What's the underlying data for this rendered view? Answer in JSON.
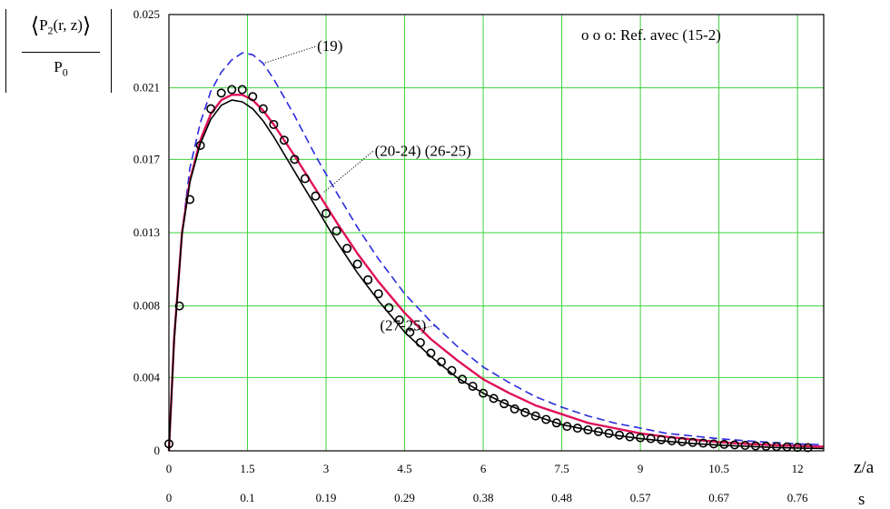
{
  "ylabel": {
    "left_angle": "⟨",
    "main": "P",
    "sub": "2",
    "args": "(r, z)",
    "right_angle": "⟩",
    "den_main": "P",
    "den_sub": "0"
  },
  "chart_data": {
    "type": "line",
    "xlabel": "z/a",
    "x2label": "s",
    "xlim": [
      0,
      12.5
    ],
    "ylim": [
      0,
      0.025
    ],
    "grid": true,
    "x_ticks": [
      "0",
      "1.5",
      "3",
      "4.5",
      "6",
      "7.5",
      "9",
      "10.5",
      "12"
    ],
    "x_tick_values": [
      0,
      1.5,
      3,
      4.5,
      6,
      7.5,
      9,
      10.5,
      12
    ],
    "x2_ticks": [
      "0",
      "0.1",
      "0.19",
      "0.29",
      "0.38",
      "0.48",
      "0.57",
      "0.67",
      "0.76"
    ],
    "y_ticks": [
      "0",
      "0.004",
      "0.008",
      "0.013",
      "0.017",
      "0.021",
      "0.025"
    ],
    "y_tick_values": [
      0,
      0.0042,
      0.0083,
      0.0125,
      0.0167,
      0.0208,
      0.025
    ],
    "legend_text": "o o o: Ref. avec (15-2)",
    "series": [
      {
        "name": "(19)",
        "color": "#2a2ae0",
        "style": "dashed",
        "x": [
          0,
          0.1,
          0.25,
          0.4,
          0.6,
          0.8,
          1.0,
          1.2,
          1.4,
          1.6,
          1.8,
          2.0,
          2.4,
          2.8,
          3.2,
          3.6,
          4.0,
          4.5,
          5.0,
          5.5,
          6.0,
          6.5,
          7.0,
          7.5,
          8.0,
          8.5,
          9.0,
          9.5,
          10.0,
          10.5,
          11.0,
          11.5,
          12.0,
          12.5
        ],
        "y": [
          0,
          0.0062,
          0.0125,
          0.0162,
          0.0188,
          0.0206,
          0.0217,
          0.0224,
          0.0228,
          0.0227,
          0.0222,
          0.0213,
          0.0192,
          0.0169,
          0.0148,
          0.0128,
          0.011,
          0.009,
          0.0074,
          0.006,
          0.0048,
          0.0039,
          0.0031,
          0.0025,
          0.002,
          0.0016,
          0.0013,
          0.001,
          0.00085,
          0.0007,
          0.00058,
          0.00048,
          0.0004,
          0.00035
        ]
      },
      {
        "name": "(20-24) (26-25)",
        "color": "#e0105a",
        "style": "solid",
        "x": [
          0,
          0.1,
          0.25,
          0.4,
          0.6,
          0.8,
          1.0,
          1.2,
          1.4,
          1.6,
          1.8,
          2.0,
          2.4,
          2.8,
          3.2,
          3.6,
          4.0,
          4.5,
          5.0,
          5.5,
          6.0,
          6.5,
          7.0,
          7.5,
          8.0,
          8.5,
          9.0,
          9.5,
          10.0,
          10.5,
          11.0,
          11.5,
          12.0,
          12.5
        ],
        "y": [
          0,
          0.0065,
          0.0125,
          0.0155,
          0.0178,
          0.0193,
          0.0201,
          0.0204,
          0.0204,
          0.0201,
          0.0195,
          0.0187,
          0.0169,
          0.015,
          0.0131,
          0.0113,
          0.0097,
          0.0079,
          0.0064,
          0.0052,
          0.0041,
          0.0033,
          0.0026,
          0.0021,
          0.0016,
          0.0013,
          0.001,
          0.0008,
          0.00065,
          0.0005,
          0.0004,
          0.00033,
          0.00028,
          0.00024
        ]
      },
      {
        "name": "(27-25)",
        "color": "#000000",
        "style": "solid",
        "x": [
          0,
          0.1,
          0.25,
          0.4,
          0.6,
          0.8,
          1.0,
          1.2,
          1.4,
          1.6,
          1.8,
          2.0,
          2.4,
          2.8,
          3.2,
          3.6,
          4.0,
          4.5,
          5.0,
          5.5,
          6.0,
          6.5,
          7.0,
          7.5,
          8.0,
          8.5,
          9.0,
          9.5,
          10.0,
          10.5,
          11.0,
          11.5,
          12.0,
          12.5
        ],
        "y": [
          0,
          0.0064,
          0.0124,
          0.0154,
          0.0176,
          0.019,
          0.0198,
          0.0201,
          0.02,
          0.0196,
          0.0189,
          0.018,
          0.016,
          0.014,
          0.012,
          0.0102,
          0.0086,
          0.0068,
          0.0054,
          0.0042,
          0.0033,
          0.0026,
          0.002,
          0.0015,
          0.0012,
          0.0009,
          0.0007,
          0.00055,
          0.00042,
          0.00033,
          0.00026,
          0.0002,
          0.00016,
          0.00013
        ]
      }
    ],
    "reference_points": {
      "name": "Ref. avec (15-2)",
      "marker": "circle",
      "x": [
        0,
        0.2,
        0.4,
        0.6,
        0.8,
        1.0,
        1.2,
        1.4,
        1.6,
        1.8,
        2.0,
        2.2,
        2.4,
        2.6,
        2.8,
        3.0,
        3.2,
        3.4,
        3.6,
        3.8,
        4.0,
        4.2,
        4.4,
        4.6,
        4.8,
        5.0,
        5.2,
        5.4,
        5.6,
        5.8,
        6.0,
        6.2,
        6.4,
        6.6,
        6.8,
        7.0,
        7.2,
        7.4,
        7.6,
        7.8,
        8.0,
        8.2,
        8.4,
        8.6,
        8.8,
        9.0,
        9.2,
        9.4,
        9.6,
        9.8,
        10.0,
        10.2,
        10.4,
        10.6,
        10.8,
        11.0,
        11.2,
        11.4,
        11.6,
        11.8,
        12.0,
        12.2
      ],
      "y": [
        0.0004,
        0.0083,
        0.0144,
        0.0175,
        0.0196,
        0.0205,
        0.0207,
        0.0207,
        0.0203,
        0.0196,
        0.0187,
        0.0178,
        0.0167,
        0.0156,
        0.0146,
        0.0136,
        0.0126,
        0.0116,
        0.0107,
        0.0098,
        0.009,
        0.0082,
        0.0075,
        0.0068,
        0.0062,
        0.0056,
        0.0051,
        0.0046,
        0.0041,
        0.0037,
        0.0033,
        0.003,
        0.0027,
        0.0024,
        0.0022,
        0.002,
        0.0018,
        0.0016,
        0.0014,
        0.0013,
        0.0012,
        0.0011,
        0.001,
        0.0009,
        0.0008,
        0.00075,
        0.0007,
        0.00064,
        0.00058,
        0.00053,
        0.00048,
        0.00044,
        0.0004,
        0.00037,
        0.00034,
        0.00031,
        0.00028,
        0.00026,
        0.00024,
        0.00022,
        0.0002,
        0.00018
      ]
    },
    "annotations": [
      {
        "text": "(19)",
        "x_data": 2.1,
        "y_data": 0.0228,
        "anchor_x": 1.8,
        "anchor_y": 0.0222
      },
      {
        "text": "(20-24) (26-25)",
        "x_data": 3.2,
        "y_data": 0.0168,
        "anchor_x": 2.95,
        "anchor_y": 0.0148
      },
      {
        "text": "(27-25)",
        "x_data": 3.3,
        "y_data": 0.0068,
        "anchor_x": 4.5,
        "anchor_y": 0.0068
      }
    ]
  }
}
